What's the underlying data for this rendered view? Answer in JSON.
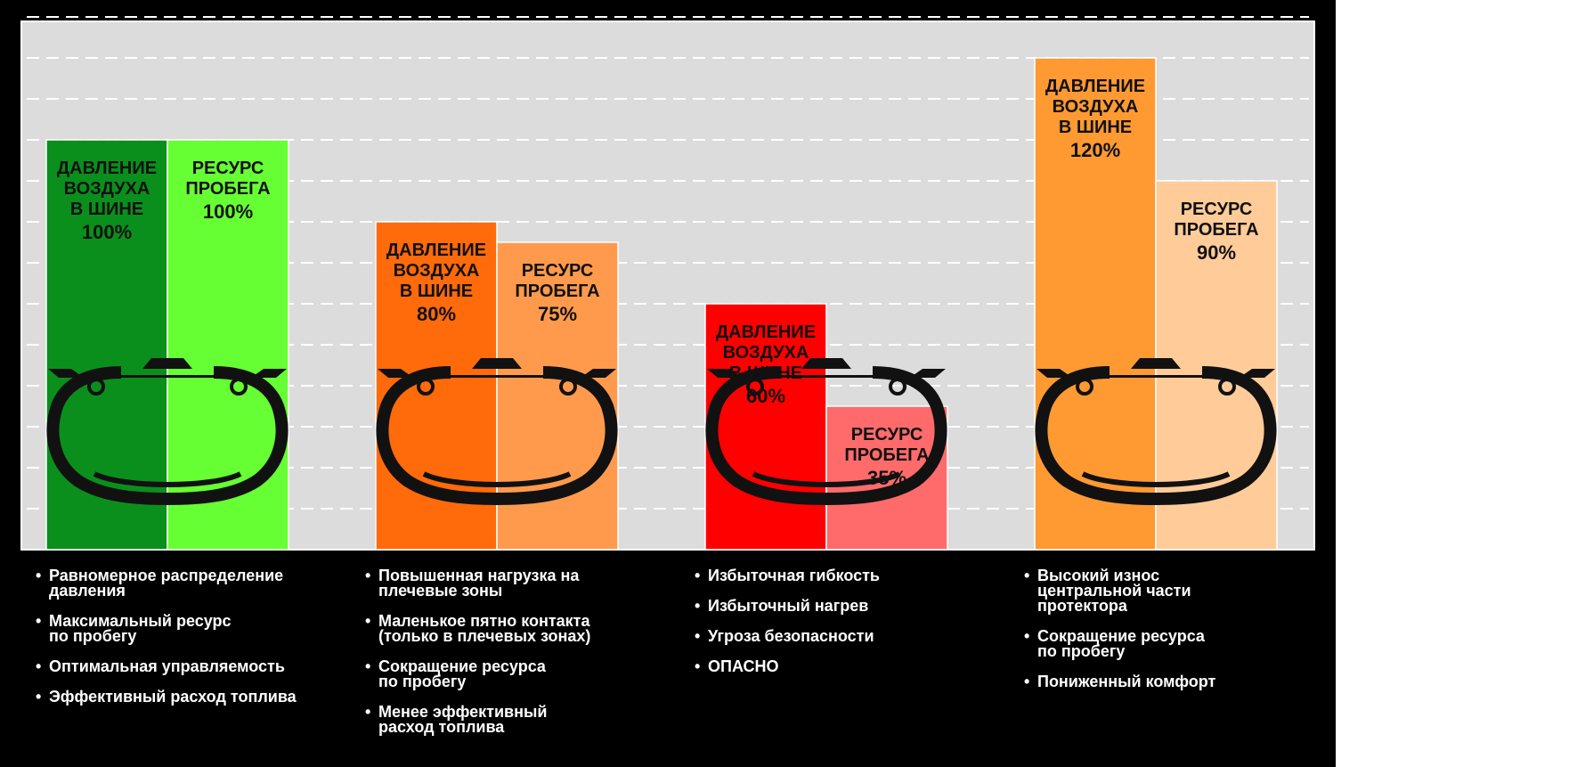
{
  "colors": {
    "panel": "#000000",
    "plot_bg": "#dcdcdc",
    "grid": "#ffffff",
    "tire": "#111111"
  },
  "chart_data": {
    "type": "bar",
    "title": "",
    "xlabel": "",
    "ylabel": "",
    "ylim": [
      0,
      140
    ],
    "grid": true,
    "series": [
      {
        "name": "ДАВЛЕНИЕ ВОЗДУХА В ШИНЕ",
        "label": [
          "ДАВЛЕНИЕ",
          "ВОЗДУХА",
          "В ШИНЕ"
        ],
        "values": [
          100,
          80,
          60,
          120
        ],
        "value_labels": [
          "100%",
          "80%",
          "60%",
          "120%"
        ],
        "colors": [
          "#0a8f1c",
          "#ff6a0a",
          "#ff0000",
          "#ff9a33"
        ]
      },
      {
        "name": "РЕСУРС ПРОБЕГА",
        "label": [
          "РЕСУРС",
          "ПРОБЕГА"
        ],
        "values": [
          100,
          75,
          35,
          90
        ],
        "value_labels": [
          "100%",
          "75%",
          "35%",
          "90%"
        ],
        "colors": [
          "#66ff33",
          "#ff9a4d",
          "#ff6b6b",
          "#ffcc99"
        ]
      }
    ]
  },
  "notes": [
    {
      "items": [
        "Равномерное распределение\nдавления",
        "Максимальный ресурс\nпо пробегу",
        "Оптимальная управляемость",
        "Эффективный расход топлива"
      ]
    },
    {
      "items": [
        "Повышенная нагрузка на\nплечевые зоны",
        "Маленькое пятно контакта\n(только в плечевых зонах)",
        "Сокращение ресурса\nпо пробегу",
        "Менее эффективный\nрасход топлива"
      ]
    },
    {
      "items": [
        "Избыточная гибкость",
        "Избыточный нагрев",
        "Угроза безопасности",
        "ОПАСНО"
      ]
    },
    {
      "items": [
        "Высокий износ\nцентральной части\nпротектора",
        "Сокращение ресурса\nпо пробегу",
        "Пониженный комфорт"
      ]
    }
  ]
}
